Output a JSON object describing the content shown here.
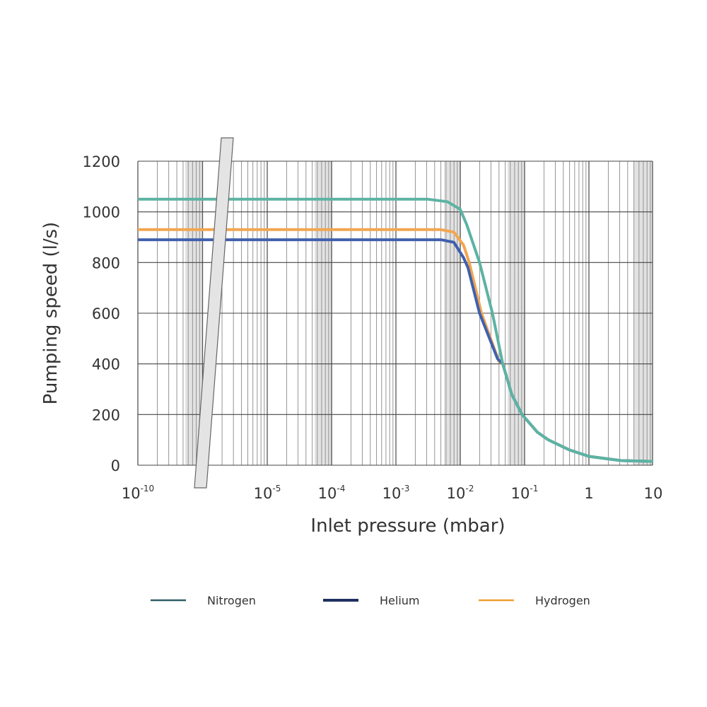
{
  "chart_data": {
    "type": "line",
    "title": "",
    "xlabel": "Inlet pressure (mbar)",
    "ylabel": "Pumping speed (l/s)",
    "x_scale": "log",
    "x_axis_break": "between 1e-10 and 1e-5",
    "xlim": [
      1e-10,
      10
    ],
    "ylim": [
      0,
      1200
    ],
    "grid": true,
    "legend_position": "bottom",
    "x_ticks": [
      {
        "base": "10",
        "exp": "-10",
        "log": -10
      },
      {
        "base": "10",
        "exp": "-5",
        "log": -5
      },
      {
        "base": "10",
        "exp": "-4",
        "log": -4
      },
      {
        "base": "10",
        "exp": "-3",
        "log": -3
      },
      {
        "base": "10",
        "exp": "-2",
        "log": -2
      },
      {
        "base": "10",
        "exp": "-1",
        "log": -1
      },
      {
        "base": "1",
        "exp": "",
        "log": 0
      },
      {
        "base": "10",
        "exp": "",
        "log": 1
      }
    ],
    "y_ticks": [
      "0",
      "200",
      "400",
      "600",
      "800",
      "1000",
      "1200"
    ],
    "series": [
      {
        "name": "Nitrogen",
        "color": "#5cb3a3",
        "legend_color": "#2f5d66",
        "x_log10": [
          -10,
          -2.5,
          -2.2,
          -2.0,
          -1.9,
          -1.7,
          -1.5,
          -1.34,
          -1.2,
          -1.04,
          -0.8,
          -0.63,
          -0.3,
          0,
          0.5,
          1
        ],
        "y": [
          1050,
          1050,
          1040,
          1010,
          950,
          800,
          600,
          400,
          280,
          200,
          130,
          100,
          60,
          35,
          18,
          15
        ]
      },
      {
        "name": "Helium",
        "color": "#4060ad",
        "legend_color": "#1f2f5e",
        "x_log10": [
          -10,
          -2.3,
          -2.1,
          -1.95,
          -1.88,
          -1.7,
          -1.42,
          -1.34,
          -1.2,
          -1.04,
          -0.8,
          -0.63,
          -0.3,
          0,
          0.5,
          1
        ],
        "y": [
          890,
          890,
          880,
          820,
          780,
          600,
          420,
          400,
          280,
          200,
          130,
          100,
          60,
          35,
          18,
          15
        ]
      },
      {
        "name": "Hydrogen",
        "color": "#f2a650",
        "legend_color": "#f0a030",
        "x_log10": [
          -10,
          -2.3,
          -2.1,
          -1.95,
          -1.86,
          -1.67,
          -1.4,
          -1.34,
          -1.2,
          -1.04,
          -0.8,
          -0.63,
          -0.3,
          0,
          0.5,
          1
        ],
        "y": [
          930,
          930,
          920,
          870,
          800,
          600,
          410,
          400,
          280,
          200,
          130,
          100,
          60,
          35,
          18,
          15
        ]
      }
    ]
  }
}
